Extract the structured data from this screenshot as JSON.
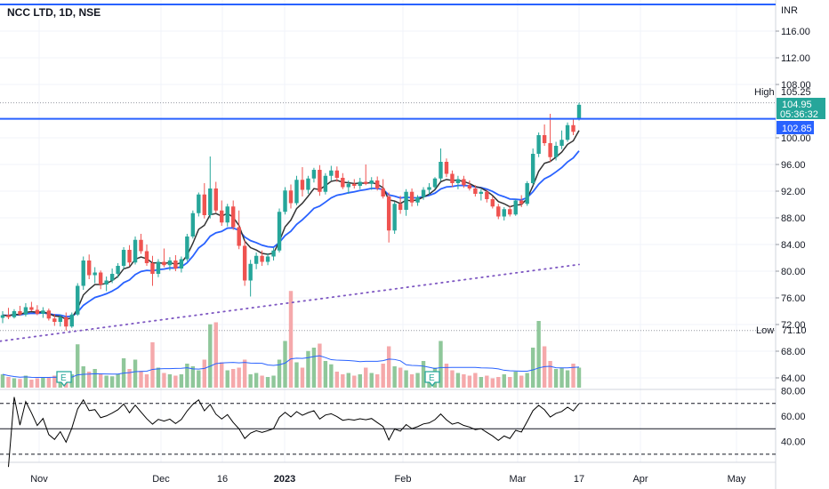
{
  "window": {
    "title": "NCC LTD, 1D, NSE"
  },
  "price_axis": {
    "currency": "INR",
    "ticks": [
      "116.00",
      "112.00",
      "108.00",
      "100.00",
      "96.00",
      "92.00",
      "88.00",
      "84.00",
      "80.00",
      "76.00",
      "72.00",
      "68.00",
      "64.00"
    ]
  },
  "rsi_axis": {
    "ticks": [
      "80.00",
      "60.00",
      "40.00"
    ]
  },
  "markers": {
    "high_label": "High",
    "high_value": "105.25",
    "low_label": "Low",
    "low_value": "71.10",
    "last_price": "104.95",
    "countdown": "05:36:32",
    "level_price": "102.85"
  },
  "events": [
    "E",
    "E"
  ],
  "x_axis": {
    "labels": [
      "Nov",
      "Dec",
      "16",
      "2023",
      "Feb",
      "Mar",
      "17",
      "Apr",
      "May"
    ]
  },
  "colors": {
    "up": "#26a69a",
    "down": "#ef5350",
    "vol_up": "#8fc79a",
    "vol_down": "#f5a9ab",
    "ema_fast": "#333333",
    "ema_slow": "#2962ff",
    "long_ma": "#7e57c2",
    "hline": "#2962ff",
    "rsi": "#000000"
  },
  "chart_data": {
    "type": "candlestick",
    "title": "NCC LTD, 1D, NSE",
    "currency": "INR",
    "dates": [
      "2022-10-24",
      "2022-10-25",
      "2022-10-27",
      "2022-10-28",
      "2022-10-31",
      "2022-11-01",
      "2022-11-02",
      "2022-11-03",
      "2022-11-04",
      "2022-11-07",
      "2022-11-09",
      "2022-11-10",
      "2022-11-11",
      "2022-11-14",
      "2022-11-15",
      "2022-11-16",
      "2022-11-17",
      "2022-11-18",
      "2022-11-21",
      "2022-11-22",
      "2022-11-23",
      "2022-11-24",
      "2022-11-25",
      "2022-11-28",
      "2022-11-29",
      "2022-11-30",
      "2022-12-01",
      "2022-12-02",
      "2022-12-05",
      "2022-12-06",
      "2022-12-07",
      "2022-12-08",
      "2022-12-09",
      "2022-12-12",
      "2022-12-13",
      "2022-12-14",
      "2022-12-15",
      "2022-12-16",
      "2022-12-19",
      "2022-12-20",
      "2022-12-21",
      "2022-12-22",
      "2022-12-23",
      "2022-12-26",
      "2022-12-27",
      "2022-12-28",
      "2022-12-29",
      "2022-12-30",
      "2023-01-02",
      "2023-01-03",
      "2023-01-04",
      "2023-01-05",
      "2023-01-06",
      "2023-01-09",
      "2023-01-10",
      "2023-01-11",
      "2023-01-12",
      "2023-01-13",
      "2023-01-16",
      "2023-01-17",
      "2023-01-18",
      "2023-01-19",
      "2023-01-20",
      "2023-01-23",
      "2023-01-24",
      "2023-01-25",
      "2023-01-27",
      "2023-01-30",
      "2023-01-31",
      "2023-02-01",
      "2023-02-02",
      "2023-02-03",
      "2023-02-06",
      "2023-02-07",
      "2023-02-08",
      "2023-02-09",
      "2023-02-10",
      "2023-02-13",
      "2023-02-14",
      "2023-02-15",
      "2023-02-16",
      "2023-02-17",
      "2023-02-20",
      "2023-02-21",
      "2023-02-22",
      "2023-02-23",
      "2023-02-24",
      "2023-02-27",
      "2023-02-28",
      "2023-03-01",
      "2023-03-02",
      "2023-03-03",
      "2023-03-06",
      "2023-03-08",
      "2023-03-09",
      "2023-03-10",
      "2023-03-13",
      "2023-03-14",
      "2023-03-15",
      "2023-03-16",
      "2023-03-17"
    ],
    "ohlc": [
      [
        73.0,
        74.0,
        72.2,
        73.4
      ],
      [
        73.4,
        74.5,
        72.8,
        73.1
      ],
      [
        73.1,
        74.3,
        72.9,
        74.0
      ],
      [
        74.0,
        74.8,
        73.3,
        73.5
      ],
      [
        73.5,
        75.2,
        73.2,
        74.6
      ],
      [
        74.6,
        75.4,
        74.0,
        74.2
      ],
      [
        74.2,
        74.9,
        73.4,
        73.6
      ],
      [
        73.6,
        74.6,
        73.0,
        74.1
      ],
      [
        74.1,
        74.4,
        72.6,
        72.9
      ],
      [
        72.9,
        73.6,
        71.8,
        72.4
      ],
      [
        72.4,
        73.5,
        71.7,
        73.1
      ],
      [
        73.1,
        73.8,
        71.1,
        71.7
      ],
      [
        71.7,
        73.8,
        71.5,
        73.5
      ],
      [
        73.5,
        78.2,
        73.3,
        77.8
      ],
      [
        77.8,
        82.2,
        77.2,
        81.6
      ],
      [
        81.6,
        82.5,
        78.8,
        79.4
      ],
      [
        79.4,
        80.6,
        78.2,
        79.8
      ],
      [
        79.8,
        80.1,
        77.3,
        78.0
      ],
      [
        78.0,
        79.2,
        77.0,
        78.6
      ],
      [
        78.6,
        80.4,
        78.2,
        79.6
      ],
      [
        79.6,
        81.2,
        79.0,
        80.8
      ],
      [
        80.8,
        83.6,
        80.3,
        83.2
      ],
      [
        83.2,
        83.9,
        80.8,
        81.3
      ],
      [
        81.3,
        85.2,
        81.0,
        84.7
      ],
      [
        84.7,
        85.6,
        82.6,
        83.0
      ],
      [
        83.0,
        84.0,
        80.8,
        81.2
      ],
      [
        81.2,
        82.3,
        77.8,
        79.6
      ],
      [
        79.6,
        81.8,
        79.1,
        81.4
      ],
      [
        81.4,
        83.4,
        80.6,
        80.9
      ],
      [
        80.9,
        82.1,
        80.1,
        81.6
      ],
      [
        81.6,
        82.4,
        80.0,
        80.4
      ],
      [
        80.4,
        82.2,
        79.8,
        81.8
      ],
      [
        81.8,
        85.6,
        81.5,
        85.2
      ],
      [
        85.2,
        89.1,
        84.9,
        88.7
      ],
      [
        88.7,
        91.8,
        88.2,
        91.5
      ],
      [
        91.5,
        93.2,
        87.9,
        88.4
      ],
      [
        88.4,
        97.2,
        87.9,
        92.4
      ],
      [
        92.4,
        93.4,
        88.8,
        89.1
      ],
      [
        89.1,
        90.6,
        86.8,
        87.3
      ],
      [
        87.3,
        90.1,
        86.7,
        89.7
      ],
      [
        89.7,
        90.6,
        86.2,
        86.6
      ],
      [
        86.6,
        89.1,
        83.3,
        83.8
      ],
      [
        83.8,
        84.6,
        77.8,
        78.6
      ],
      [
        78.6,
        81.7,
        76.2,
        81.1
      ],
      [
        81.1,
        82.8,
        80.3,
        82.3
      ],
      [
        82.3,
        83.1,
        80.8,
        81.4
      ],
      [
        81.4,
        82.7,
        80.9,
        82.2
      ],
      [
        82.2,
        83.5,
        81.6,
        83.1
      ],
      [
        83.1,
        89.4,
        82.8,
        88.9
      ],
      [
        88.9,
        92.6,
        88.5,
        92.1
      ],
      [
        92.1,
        93.0,
        89.4,
        90.2
      ],
      [
        90.2,
        94.3,
        89.9,
        93.7
      ],
      [
        93.7,
        95.6,
        91.2,
        92.2
      ],
      [
        92.2,
        94.3,
        91.6,
        93.9
      ],
      [
        93.9,
        95.5,
        93.3,
        95.2
      ],
      [
        95.2,
        95.9,
        91.3,
        91.9
      ],
      [
        91.9,
        94.7,
        91.5,
        94.3
      ],
      [
        94.3,
        95.8,
        93.6,
        95.1
      ],
      [
        95.1,
        95.7,
        93.4,
        94.0
      ],
      [
        94.0,
        94.7,
        92.3,
        92.6
      ],
      [
        92.6,
        93.6,
        91.6,
        93.1
      ],
      [
        93.1,
        93.8,
        92.4,
        92.8
      ],
      [
        92.8,
        94.0,
        92.3,
        93.4
      ],
      [
        93.4,
        96.0,
        92.9,
        93.1
      ],
      [
        93.1,
        94.1,
        92.2,
        93.6
      ],
      [
        93.6,
        94.2,
        92.1,
        92.4
      ],
      [
        92.4,
        93.8,
        90.9,
        91.2
      ],
      [
        91.2,
        91.8,
        84.3,
        86.1
      ],
      [
        86.1,
        90.4,
        85.6,
        90.1
      ],
      [
        90.1,
        91.3,
        88.6,
        89.2
      ],
      [
        89.2,
        92.3,
        88.3,
        91.9
      ],
      [
        91.9,
        92.4,
        89.7,
        90.3
      ],
      [
        90.3,
        91.4,
        89.8,
        91.1
      ],
      [
        91.1,
        92.6,
        90.7,
        92.2
      ],
      [
        92.2,
        93.2,
        91.5,
        92.6
      ],
      [
        92.6,
        94.1,
        92.3,
        93.9
      ],
      [
        93.9,
        98.4,
        93.5,
        96.4
      ],
      [
        96.4,
        96.9,
        94.1,
        94.6
      ],
      [
        94.6,
        95.1,
        92.6,
        93.2
      ],
      [
        93.2,
        94.3,
        92.3,
        93.8
      ],
      [
        93.8,
        94.3,
        92.5,
        92.9
      ],
      [
        92.9,
        93.6,
        92.1,
        92.4
      ],
      [
        92.4,
        92.9,
        91.2,
        91.6
      ],
      [
        91.6,
        92.3,
        90.6,
        91.9
      ],
      [
        91.9,
        92.2,
        90.3,
        90.8
      ],
      [
        90.8,
        91.2,
        89.4,
        89.7
      ],
      [
        89.7,
        90.1,
        87.8,
        88.2
      ],
      [
        88.2,
        89.6,
        87.6,
        89.3
      ],
      [
        89.3,
        89.8,
        88.2,
        88.5
      ],
      [
        88.5,
        90.8,
        88.3,
        90.6
      ],
      [
        90.6,
        91.4,
        89.6,
        90.1
      ],
      [
        90.1,
        93.5,
        89.8,
        93.2
      ],
      [
        93.2,
        98.4,
        92.9,
        97.6
      ],
      [
        97.6,
        100.8,
        97.1,
        100.4
      ],
      [
        100.4,
        102.0,
        98.8,
        99.2
      ],
      [
        99.2,
        103.6,
        96.4,
        97.1
      ],
      [
        97.1,
        99.4,
        96.6,
        98.8
      ],
      [
        98.8,
        101.1,
        98.3,
        99.7
      ],
      [
        99.7,
        102.3,
        99.4,
        101.9
      ],
      [
        101.9,
        102.9,
        100.4,
        100.9
      ],
      [
        102.9,
        105.25,
        102.6,
        104.95
      ]
    ],
    "volume_relative": [
      0.2,
      0.16,
      0.14,
      0.13,
      0.18,
      0.12,
      0.14,
      0.16,
      0.15,
      0.18,
      0.12,
      0.16,
      0.2,
      0.65,
      0.32,
      0.24,
      0.28,
      0.2,
      0.18,
      0.17,
      0.2,
      0.44,
      0.28,
      0.42,
      0.25,
      0.2,
      0.68,
      0.3,
      0.22,
      0.2,
      0.18,
      0.2,
      0.36,
      0.32,
      0.26,
      0.42,
      0.95,
      0.98,
      0.38,
      0.26,
      0.28,
      0.3,
      0.42,
      0.2,
      0.22,
      0.18,
      0.16,
      0.18,
      0.42,
      0.7,
      1.45,
      0.38,
      0.3,
      0.55,
      0.6,
      0.66,
      0.4,
      0.35,
      0.24,
      0.2,
      0.22,
      0.18,
      0.2,
      0.3,
      0.22,
      0.2,
      0.36,
      0.62,
      0.32,
      0.3,
      0.26,
      0.2,
      0.22,
      0.4,
      0.24,
      0.3,
      0.7,
      0.36,
      0.26,
      0.22,
      0.2,
      0.18,
      0.22,
      0.16,
      0.18,
      0.14,
      0.16,
      0.2,
      0.16,
      0.24,
      0.18,
      0.22,
      0.6,
      1.0,
      0.62,
      0.4,
      0.28,
      0.3,
      0.26,
      0.36,
      0.3
    ],
    "indicators": [
      {
        "name": "EMA fast",
        "type": "line"
      },
      {
        "name": "EMA slow",
        "type": "line"
      },
      {
        "name": "Long MA",
        "type": "dotted",
        "start": 69.5,
        "end": 81.0
      },
      {
        "name": "RSI",
        "levels": [
          70,
          50,
          30
        ]
      }
    ],
    "horizontal_levels": [
      120.0,
      102.85
    ],
    "high": 105.25,
    "low": 71.1,
    "ylim": [
      62,
      121
    ]
  }
}
